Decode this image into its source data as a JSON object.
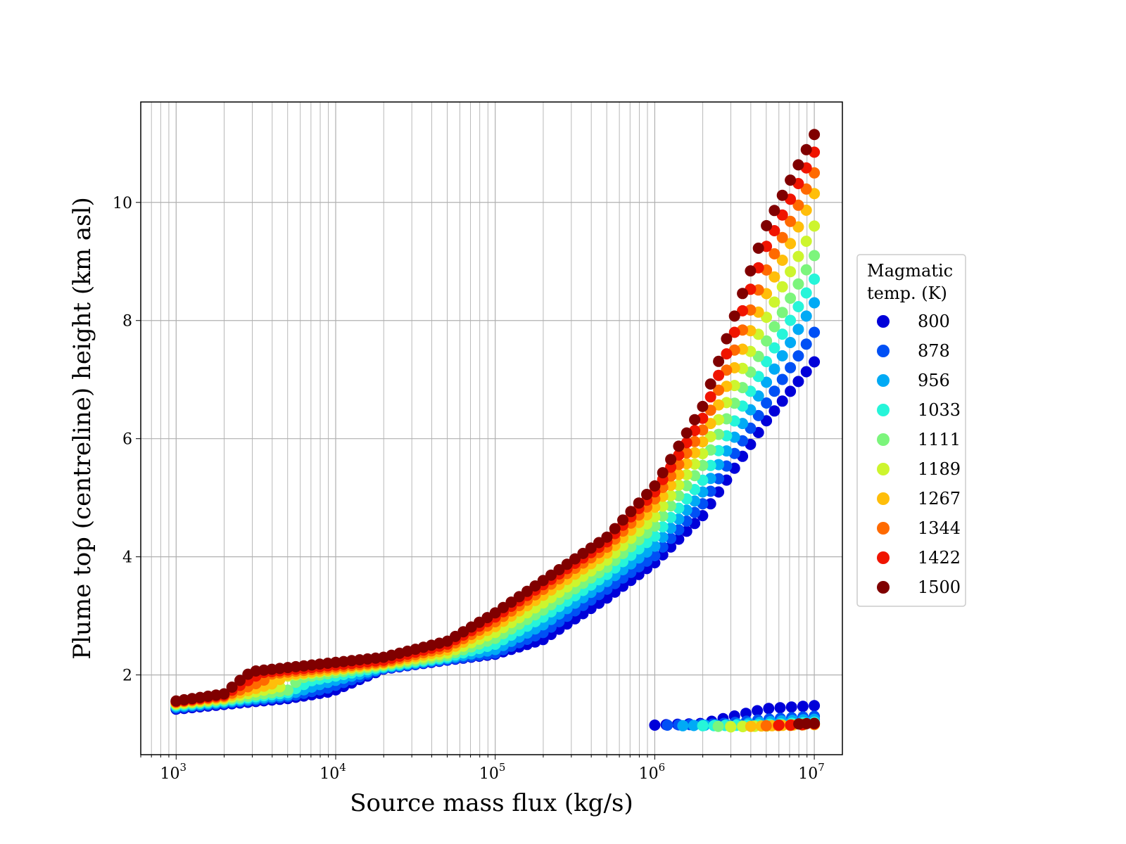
{
  "chart_data": {
    "type": "scatter",
    "title": "",
    "xlabel": "Source mass flux (kg/s)",
    "ylabel": "Plume top (centreline) height (km asl)",
    "xscale": "log",
    "xlim": [
      600,
      15000000
    ],
    "ylim": [
      0.65,
      11.7
    ],
    "xticks": [
      {
        "value": 1000,
        "base": "10",
        "exp": "3"
      },
      {
        "value": 10000,
        "base": "10",
        "exp": "4"
      },
      {
        "value": 100000,
        "base": "10",
        "exp": "5"
      },
      {
        "value": 1000000,
        "base": "10",
        "exp": "6"
      },
      {
        "value": 10000000,
        "base": "10",
        "exp": "7"
      }
    ],
    "yticks": [
      2,
      4,
      6,
      8,
      10
    ],
    "grid": true,
    "legend": {
      "title_lines": [
        "Magmatic",
        "temp. (K)"
      ],
      "placement": "right, outside"
    },
    "series": [
      {
        "name": "800",
        "color": "#0000d9",
        "x": [
          1000,
          2000,
          5000,
          9500,
          20000,
          50000,
          100000,
          200000,
          500000,
          1000000,
          2000000,
          5000000,
          10000000
        ],
        "y": [
          1.42,
          1.5,
          1.6,
          1.72,
          2.1,
          2.25,
          2.35,
          2.6,
          3.3,
          3.9,
          4.7,
          6.3,
          7.3
        ],
        "low_x": [
          1000000,
          2000000,
          5000000,
          10000000
        ],
        "low_y": [
          1.15,
          1.18,
          1.43,
          1.48
        ]
      },
      {
        "name": "878",
        "color": "#0050f5",
        "x": [
          1000,
          2000,
          5000,
          9000,
          20000,
          50000,
          100000,
          200000,
          500000,
          1000000,
          2000000,
          5000000,
          10000000
        ],
        "y": [
          1.44,
          1.52,
          1.63,
          1.78,
          2.11,
          2.26,
          2.37,
          2.72,
          3.45,
          4.02,
          4.9,
          6.6,
          7.8
        ],
        "low_x": [
          1200000,
          2500000,
          5000000,
          10000000
        ],
        "low_y": [
          1.15,
          1.17,
          1.25,
          1.3
        ]
      },
      {
        "name": "956",
        "color": "#00aaf5",
        "x": [
          1000,
          2000,
          5000,
          8000,
          20000,
          50000,
          100000,
          200000,
          500000,
          1000000,
          2000000,
          5000000,
          10000000
        ],
        "y": [
          1.46,
          1.54,
          1.66,
          1.84,
          2.12,
          2.28,
          2.43,
          2.85,
          3.58,
          4.18,
          5.1,
          6.95,
          8.3
        ],
        "low_x": [
          1500000,
          3000000,
          6000000,
          10000000
        ],
        "low_y": [
          1.14,
          1.16,
          1.22,
          1.25
        ]
      },
      {
        "name": "1033",
        "color": "#26f5d9",
        "x": [
          1000,
          2000,
          5000,
          7000,
          20000,
          50000,
          100000,
          200000,
          500000,
          1000000,
          2000000,
          5000000,
          10000000
        ],
        "y": [
          1.48,
          1.56,
          1.7,
          1.9,
          2.14,
          2.3,
          2.52,
          2.98,
          3.7,
          4.35,
          5.3,
          7.3,
          8.7
        ],
        "low_x": [
          2000000,
          4000000,
          7000000,
          10000000
        ],
        "low_y": [
          1.14,
          1.15,
          1.18,
          1.2
        ]
      },
      {
        "name": "1111",
        "color": "#7cf57c",
        "x": [
          1000,
          2000,
          5000,
          6000,
          20000,
          50000,
          100000,
          200000,
          500000,
          1000000,
          2000000,
          5000000,
          10000000
        ],
        "y": [
          1.5,
          1.58,
          1.74,
          1.95,
          2.16,
          2.33,
          2.62,
          3.1,
          3.82,
          4.52,
          5.55,
          7.65,
          9.1
        ],
        "low_x": [
          2500000,
          5000000,
          8000000,
          10000000
        ],
        "low_y": [
          1.13,
          1.14,
          1.16,
          1.18
        ]
      },
      {
        "name": "1189",
        "color": "#cdf52e",
        "x": [
          1000,
          2000,
          4500,
          5000,
          20000,
          50000,
          100000,
          200000,
          500000,
          1000000,
          2000000,
          5000000,
          10000000
        ],
        "y": [
          1.51,
          1.6,
          1.8,
          1.98,
          2.18,
          2.37,
          2.72,
          3.22,
          3.94,
          4.68,
          5.75,
          8.05,
          9.6
        ],
        "low_x": [
          3000000,
          6000000,
          10000000
        ],
        "low_y": [
          1.12,
          1.14,
          1.16
        ]
      },
      {
        "name": "1267",
        "color": "#ffbe0a",
        "x": [
          1000,
          2000,
          4000,
          5000,
          20000,
          50000,
          100000,
          200000,
          500000,
          1000000,
          2000000,
          5000000,
          10000000
        ],
        "y": [
          1.53,
          1.62,
          1.85,
          2.0,
          2.2,
          2.42,
          2.82,
          3.35,
          4.06,
          4.84,
          5.95,
          8.45,
          10.15
        ],
        "low_x": [
          4000000,
          7000000,
          10000000
        ],
        "low_y": [
          1.13,
          1.15,
          1.16
        ]
      },
      {
        "name": "1344",
        "color": "#ff6a00",
        "x": [
          1000,
          2000,
          3500,
          4000,
          20000,
          50000,
          100000,
          200000,
          500000,
          1000000,
          2000000,
          5000000,
          10000000
        ],
        "y": [
          1.54,
          1.64,
          1.9,
          2.02,
          2.22,
          2.47,
          2.9,
          3.45,
          4.16,
          4.98,
          6.15,
          8.85,
          10.5
        ],
        "low_x": [
          5000000,
          8000000,
          10000000
        ],
        "low_y": [
          1.14,
          1.15,
          1.17
        ]
      },
      {
        "name": "1422",
        "color": "#f01400",
        "x": [
          1000,
          2000,
          3000,
          3500,
          20000,
          50000,
          100000,
          200000,
          500000,
          1000000,
          2000000,
          5000000,
          10000000
        ],
        "y": [
          1.55,
          1.66,
          1.95,
          2.04,
          2.25,
          2.52,
          2.98,
          3.53,
          4.25,
          5.1,
          6.35,
          9.25,
          10.85
        ],
        "low_x": [
          6000000,
          9000000,
          10000000
        ],
        "low_y": [
          1.15,
          1.16,
          1.17
        ]
      },
      {
        "name": "1500",
        "color": "#800000",
        "x": [
          1000,
          2000,
          2700,
          3000,
          20000,
          50000,
          100000,
          200000,
          500000,
          1000000,
          2000000,
          5000000,
          10000000
        ],
        "y": [
          1.56,
          1.68,
          1.98,
          2.06,
          2.3,
          2.57,
          3.05,
          3.6,
          4.33,
          5.2,
          6.55,
          9.6,
          11.15
        ],
        "low_x": [
          8000000,
          10000000
        ],
        "low_y": [
          1.17,
          1.18
        ]
      }
    ]
  }
}
